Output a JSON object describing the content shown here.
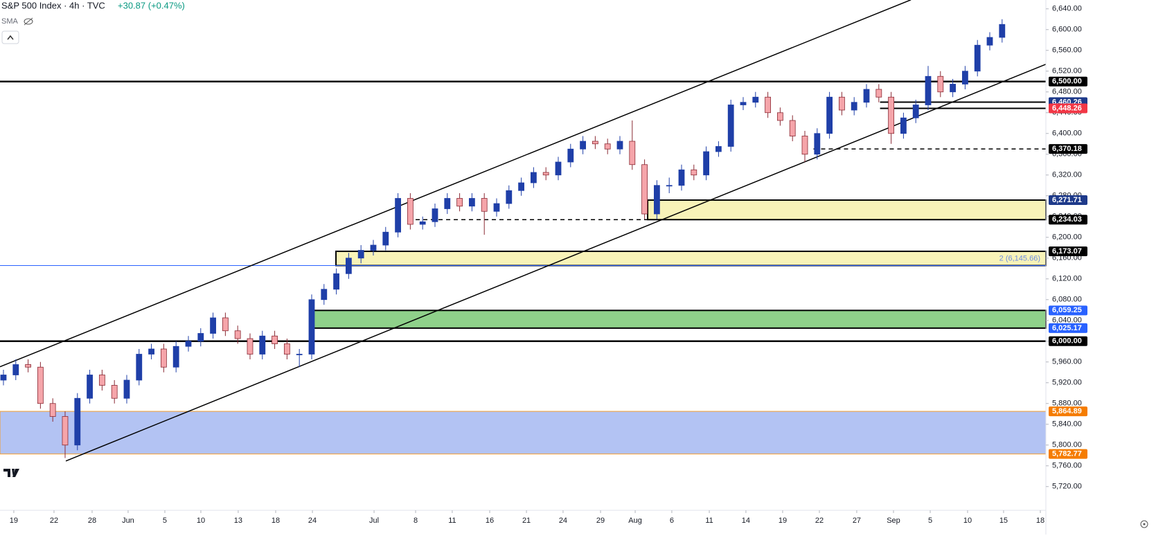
{
  "chart_data": {
    "type": "candlestick",
    "title": "S&P 500 Index · 4h · TVC",
    "change": "+30.87 (+0.47%)",
    "indicator": "SMA",
    "annotation": {
      "text": "2 (6,145.66)",
      "value": 6145.66
    },
    "xlim": [
      -0.28,
      84.55
    ],
    "ylim": [
      5677,
      6657
    ],
    "yticks": [
      {
        "value": 5720,
        "label": "5,720.00"
      },
      {
        "value": 5760,
        "label": "5,760.00"
      },
      {
        "value": 5800,
        "label": "5,800.00"
      },
      {
        "value": 5840,
        "label": "5,840.00"
      },
      {
        "value": 5880,
        "label": "5,880.00"
      },
      {
        "value": 5920,
        "label": "5,920.00"
      },
      {
        "value": 5960,
        "label": "5,960.00"
      },
      {
        "value": 6000,
        "label": "6,000.00"
      },
      {
        "value": 6040,
        "label": "6,040.00"
      },
      {
        "value": 6080,
        "label": "6,080.00"
      },
      {
        "value": 6120,
        "label": "6,120.00"
      },
      {
        "value": 6160,
        "label": "6,160.00"
      },
      {
        "value": 6200,
        "label": "6,200.00"
      },
      {
        "value": 6240,
        "label": "6,240.00"
      },
      {
        "value": 6280,
        "label": "6,280.00"
      },
      {
        "value": 6320,
        "label": "6,320.00"
      },
      {
        "value": 6360,
        "label": "6,360.00"
      },
      {
        "value": 6400,
        "label": "6,400.00"
      },
      {
        "value": 6440,
        "label": "6,440.00"
      },
      {
        "value": 6480,
        "label": "6,480.00"
      },
      {
        "value": 6520,
        "label": "6,520.00"
      },
      {
        "value": 6560,
        "label": "6,560.00"
      },
      {
        "value": 6600,
        "label": "6,600.00"
      },
      {
        "value": 6640,
        "label": "6,640.00"
      }
    ],
    "xticks": [
      {
        "value": 0.84,
        "label": "19"
      },
      {
        "value": 4.1,
        "label": "22"
      },
      {
        "value": 7.19,
        "label": "28"
      },
      {
        "value": 10.11,
        "label": "Jun"
      },
      {
        "value": 13.09,
        "label": "5"
      },
      {
        "value": 16.01,
        "label": "10"
      },
      {
        "value": 19.04,
        "label": "13"
      },
      {
        "value": 22.08,
        "label": "18"
      },
      {
        "value": 25.06,
        "label": "24"
      },
      {
        "value": 30.06,
        "label": "Jul"
      },
      {
        "value": 33.43,
        "label": "8"
      },
      {
        "value": 36.4,
        "label": "11"
      },
      {
        "value": 39.44,
        "label": "16"
      },
      {
        "value": 42.42,
        "label": "21"
      },
      {
        "value": 45.39,
        "label": "24"
      },
      {
        "value": 48.43,
        "label": "29"
      },
      {
        "value": 51.24,
        "label": "Aug"
      },
      {
        "value": 54.21,
        "label": "6"
      },
      {
        "value": 57.25,
        "label": "11"
      },
      {
        "value": 60.22,
        "label": "14"
      },
      {
        "value": 63.2,
        "label": "19"
      },
      {
        "value": 66.18,
        "label": "22"
      },
      {
        "value": 69.21,
        "label": "27"
      },
      {
        "value": 72.19,
        "label": "Sep"
      },
      {
        "value": 75.17,
        "label": "5"
      },
      {
        "value": 78.2,
        "label": "10"
      },
      {
        "value": 81.12,
        "label": "15"
      },
      {
        "value": 84.1,
        "label": "18"
      }
    ],
    "up_color": "#1f3fa8",
    "down_color": "#f5a5aa",
    "down_edge": "#8a2a34",
    "series": [
      {
        "x": [
          0,
          1,
          2,
          3,
          4,
          5,
          6,
          7,
          8,
          9,
          10,
          11,
          12,
          13,
          14,
          15,
          16,
          17,
          18,
          19,
          20,
          21,
          22,
          23,
          24,
          25,
          26,
          27,
          28,
          29,
          30,
          31,
          32,
          33,
          34,
          35,
          36,
          37,
          38,
          39,
          40,
          41,
          42,
          43,
          44,
          45,
          46,
          47,
          48,
          49,
          50,
          51,
          52,
          53,
          54,
          55,
          56,
          57,
          58,
          59,
          60,
          61,
          62,
          63,
          64,
          65,
          66,
          67,
          68,
          69,
          70,
          71,
          72,
          73,
          74,
          75,
          76,
          77,
          78,
          79,
          80,
          81
        ],
        "open": [
          5925,
          5935,
          5955,
          5950,
          5880,
          5855,
          5800,
          5890,
          5935,
          5915,
          5890,
          5925,
          5975,
          5985,
          5950,
          5990,
          6000,
          6015,
          6045,
          6020,
          6005,
          5975,
          6010,
          5995,
          5975,
          5975,
          6080,
          6100,
          6130,
          6160,
          6175,
          6185,
          6210,
          6275,
          6225,
          6230,
          6255,
          6275,
          6260,
          6275,
          6250,
          6265,
          6290,
          6305,
          6325,
          6320,
          6345,
          6370,
          6385,
          6380,
          6370,
          6385,
          6340,
          6245,
          6300,
          6300,
          6330,
          6320,
          6365,
          6375,
          6455,
          6460,
          6470,
          6440,
          6425,
          6395,
          6360,
          6400,
          6470,
          6445,
          6460,
          6485,
          6470,
          6400,
          6430,
          6455,
          6510,
          6480,
          6495,
          6520,
          6570,
          6585
        ],
        "high": [
          5945,
          5965,
          5965,
          5960,
          5890,
          5865,
          5900,
          5945,
          5945,
          5925,
          5935,
          5985,
          5995,
          5995,
          6000,
          6010,
          6025,
          6055,
          6055,
          6030,
          6015,
          6020,
          6020,
          6005,
          5985,
          6090,
          6110,
          6140,
          6170,
          6185,
          6195,
          6220,
          6285,
          6285,
          6240,
          6265,
          6285,
          6285,
          6285,
          6285,
          6275,
          6300,
          6315,
          6335,
          6335,
          6355,
          6380,
          6395,
          6395,
          6390,
          6395,
          6425,
          6350,
          6310,
          6315,
          6340,
          6340,
          6375,
          6385,
          6465,
          6470,
          6480,
          6480,
          6450,
          6435,
          6405,
          6410,
          6480,
          6480,
          6470,
          6495,
          6495,
          6480,
          6440,
          6465,
          6530,
          6520,
          6505,
          6530,
          6580,
          6595,
          6620
        ],
        "low": [
          5915,
          5925,
          5940,
          5870,
          5845,
          5775,
          5790,
          5880,
          5905,
          5880,
          5880,
          5915,
          5965,
          5940,
          5940,
          5980,
          5990,
          6005,
          6010,
          5995,
          5965,
          5965,
          5985,
          5965,
          5950,
          5965,
          6070,
          6090,
          6120,
          6150,
          6165,
          6175,
          6200,
          6215,
          6215,
          6220,
          6245,
          6250,
          6250,
          6205,
          6240,
          6255,
          6280,
          6295,
          6310,
          6310,
          6335,
          6360,
          6370,
          6360,
          6360,
          6330,
          6235,
          6235,
          6285,
          6290,
          6310,
          6310,
          6355,
          6365,
          6445,
          6450,
          6430,
          6415,
          6385,
          6345,
          6350,
          6390,
          6435,
          6435,
          6450,
          6460,
          6380,
          6390,
          6420,
          6445,
          6470,
          6470,
          6485,
          6510,
          6560,
          6575
        ],
        "close": [
          5935,
          5955,
          5950,
          5880,
          5855,
          5800,
          5890,
          5935,
          5915,
          5890,
          5925,
          5975,
          5985,
          5950,
          5990,
          6000,
          6015,
          6045,
          6020,
          6005,
          5975,
          6010,
          5995,
          5975,
          5975,
          6080,
          6100,
          6130,
          6160,
          6175,
          6185,
          6210,
          6275,
          6225,
          6230,
          6255,
          6275,
          6260,
          6275,
          6250,
          6265,
          6290,
          6305,
          6325,
          6320,
          6345,
          6370,
          6385,
          6380,
          6370,
          6385,
          6340,
          6245,
          6300,
          6300,
          6330,
          6320,
          6365,
          6375,
          6455,
          6460,
          6470,
          6440,
          6425,
          6395,
          6360,
          6400,
          6470,
          6445,
          6460,
          6485,
          6470,
          6400,
          6430,
          6455,
          6510,
          6480,
          6495,
          6520,
          6570,
          6585,
          6610
        ]
      }
    ],
    "zones": [
      {
        "from": 5782.77,
        "to": 5864.89,
        "start": -0.28,
        "color": "#b3c3f3",
        "edge": "#f59e2b"
      },
      {
        "from": 6025.17,
        "to": 6059.25,
        "start": 25.0,
        "color": "#8fd18a",
        "edge": "#000000"
      },
      {
        "from": 6145.66,
        "to": 6173.07,
        "start": 26.97,
        "color": "#f8f3b8",
        "edge": "#000000"
      },
      {
        "from": 6234.03,
        "to": 6271.71,
        "start": 52.25,
        "color": "#f8f3b8",
        "edge": "#000000"
      }
    ],
    "hlines": [
      {
        "value": 6500,
        "start": -0.28,
        "dash": false,
        "width": 2.5,
        "color": "#000000"
      },
      {
        "value": 6000,
        "start": -0.28,
        "dash": false,
        "width": 2.5,
        "color": "#000000"
      },
      {
        "value": 6145.66,
        "start": -0.28,
        "dash": false,
        "width": 1,
        "color": "#2962ff"
      },
      {
        "value": 6460.26,
        "start": 71.1,
        "dash": false,
        "width": 2,
        "color": "#000000"
      },
      {
        "value": 6448.26,
        "start": 71.1,
        "dash": false,
        "width": 2,
        "color": "#000000"
      },
      {
        "value": 6370.18,
        "start": 65.7,
        "dash": true,
        "width": 1.5,
        "color": "#000000"
      },
      {
        "value": 6234.03,
        "start": 33.43,
        "dash": true,
        "width": 1.5,
        "color": "#000000"
      }
    ],
    "trendlines": [
      {
        "x": [
          -0.28,
          73.6
        ],
        "y": [
          5950.7,
          6657.3
        ]
      },
      {
        "x": [
          5.06,
          84.55
        ],
        "y": [
          5769.3,
          6533.3
        ]
      }
    ],
    "price_labels": [
      {
        "value": 6500,
        "label": "6,500.00",
        "color": "#000000"
      },
      {
        "value": 6460.26,
        "label": "6,460.26",
        "color": "#1e3a8a"
      },
      {
        "value": 6448.26,
        "label": "6,448.26",
        "color": "#f23645"
      },
      {
        "value": 6370.18,
        "label": "6,370.18",
        "color": "#000000"
      },
      {
        "value": 6271.71,
        "label": "6,271.71",
        "color": "#1e3a8a"
      },
      {
        "value": 6234.03,
        "label": "6,234.03",
        "color": "#000000"
      },
      {
        "value": 6173.07,
        "label": "6,173.07",
        "color": "#000000"
      },
      {
        "value": 6059.25,
        "label": "6,059.25",
        "color": "#2962ff"
      },
      {
        "value": 6025.17,
        "label": "6,025.17",
        "color": "#2962ff"
      },
      {
        "value": 6000,
        "label": "6,000.00",
        "color": "#000000"
      },
      {
        "value": 5864.89,
        "label": "5,864.89",
        "color": "#f57c00"
      },
      {
        "value": 5782.77,
        "label": "5,782.77",
        "color": "#f57c00"
      }
    ]
  }
}
